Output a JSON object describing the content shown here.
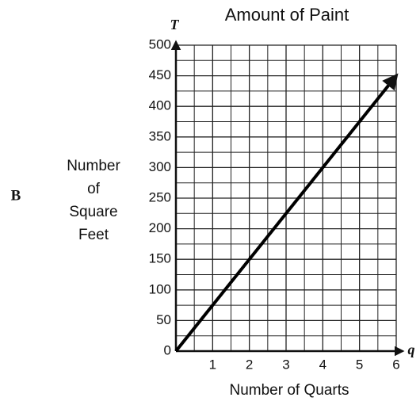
{
  "chart_data": {
    "type": "line",
    "title": "Amount of Paint",
    "panel_label": "B",
    "xlabel": "Number of Quarts",
    "ylabel": [
      "Number",
      "of",
      "Square",
      "Feet"
    ],
    "x_axis_letter": "q",
    "y_axis_letter": "T",
    "x": [
      0,
      6
    ],
    "series": [
      {
        "color": "#000000",
        "values": [
          0,
          450
        ]
      }
    ],
    "xlim": [
      0,
      6
    ],
    "xticks": [
      1,
      2,
      3,
      4,
      5,
      6
    ],
    "ylim": [
      0,
      500
    ],
    "yticks": [
      0,
      50,
      100,
      150,
      200,
      250,
      300,
      350,
      400,
      450,
      500
    ],
    "grid": true,
    "minor_grid": true
  }
}
